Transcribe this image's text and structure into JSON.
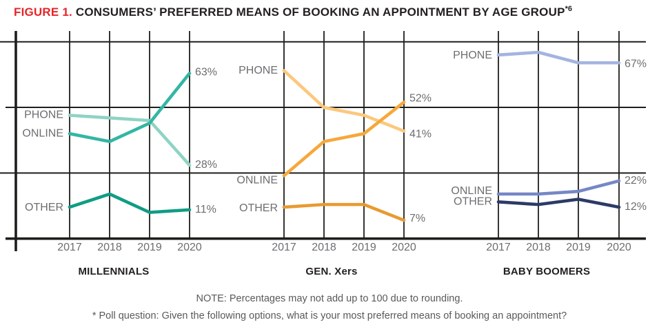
{
  "title": {
    "figure_label": "FIGURE 1.",
    "main": " CONSUMERS’ PREFERRED MEANS OF BOOKING AN APPOINTMENT BY AGE GROUP",
    "superscript": "*6",
    "figure_label_color": "#e42528",
    "text_color": "#231f20"
  },
  "chart_data": [
    {
      "type": "line",
      "title": "MILLENNIALS",
      "x": [
        "2017",
        "2018",
        "2019",
        "2020"
      ],
      "ylim": [
        0,
        79
      ],
      "series": [
        {
          "name": "PHONE",
          "color": "#8fd3c3",
          "values": [
            47,
            46,
            45,
            28
          ],
          "end_label": "28%"
        },
        {
          "name": "ONLINE",
          "color": "#33b6a4",
          "values": [
            40,
            37,
            44,
            63
          ],
          "end_label": "63%"
        },
        {
          "name": "OTHER",
          "color": "#109c84",
          "values": [
            12,
            17,
            10,
            11
          ],
          "end_label": "11%"
        }
      ]
    },
    {
      "type": "line",
      "title": "GEN. Xers",
      "x": [
        "2017",
        "2018",
        "2019",
        "2020"
      ],
      "ylim": [
        0,
        79
      ],
      "series": [
        {
          "name": "PHONE",
          "color": "#fcc87e",
          "values": [
            64,
            50,
            47,
            41
          ],
          "end_label": "41%"
        },
        {
          "name": "ONLINE",
          "color": "#f6a83b",
          "values": [
            24,
            37,
            40,
            52
          ],
          "end_label": "52%"
        },
        {
          "name": "OTHER",
          "color": "#e89a31",
          "values": [
            12,
            13,
            13,
            7
          ],
          "end_label": "7%"
        }
      ]
    },
    {
      "type": "line",
      "title": "BABY BOOMERS",
      "x": [
        "2017",
        "2018",
        "2019",
        "2020"
      ],
      "ylim": [
        0,
        79
      ],
      "series": [
        {
          "name": "PHONE",
          "color": "#a4b4e0",
          "values": [
            70,
            71,
            67,
            67
          ],
          "end_label": "67%"
        },
        {
          "name": "ONLINE",
          "color": "#7587c5",
          "values": [
            17,
            17,
            18,
            22
          ],
          "end_label": "22%"
        },
        {
          "name": "OTHER",
          "color": "#2c3a67",
          "values": [
            14,
            13,
            15,
            12
          ],
          "end_label": "12%"
        }
      ]
    }
  ],
  "axis": {
    "gridline_percents": [
      0,
      25,
      50,
      75
    ],
    "grid_on": true,
    "grid_color": "#1d1d1b",
    "label_color": "#6d6e71",
    "legend_position": "inline-left"
  },
  "notes": {
    "note": "NOTE: Percentages may not add up to 100 due to rounding.",
    "poll_question": "* Poll question: Given the following options, what is your most preferred means of booking an appointment?"
  }
}
